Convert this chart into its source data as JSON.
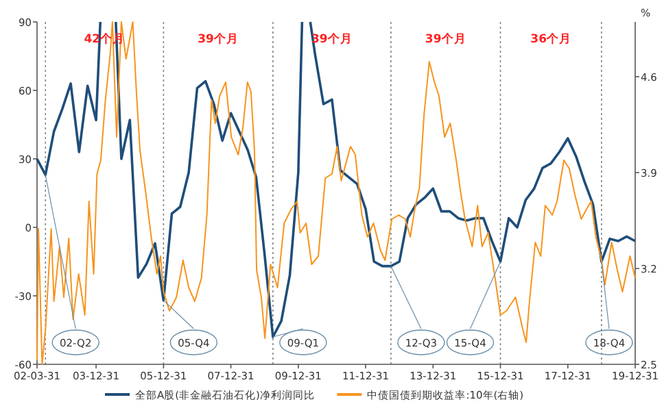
{
  "chart_data": {
    "type": "line",
    "y2label": "%",
    "legend": "bottom",
    "xlim": [
      "2002-03-31",
      "2019-12-31"
    ],
    "xticks": [
      {
        "value": "2002-03-31",
        "label": "02-03-31"
      },
      {
        "value": "2003-12-31",
        "label": "03-12-31"
      },
      {
        "value": "2005-12-31",
        "label": "05-12-31"
      },
      {
        "value": "2007-12-31",
        "label": "07-12-31"
      },
      {
        "value": "2009-12-31",
        "label": "09-12-31"
      },
      {
        "value": "2011-12-31",
        "label": "11-12-31"
      },
      {
        "value": "2013-12-31",
        "label": "13-12-31"
      },
      {
        "value": "2015-12-31",
        "label": "15-12-31"
      },
      {
        "value": "2017-12-31",
        "label": "17-12-31"
      },
      {
        "value": "2019-12-31",
        "label": "19-12-31"
      }
    ],
    "ylim": [
      -60,
      90
    ],
    "yticks": [
      -60,
      -30,
      0,
      30,
      60,
      90
    ],
    "y2lim": [
      2.5,
      5.0
    ],
    "y2ticks": [
      2.5,
      3.2,
      3.9,
      4.6
    ],
    "series": [
      {
        "name": "全部A股(非金融石油石化)净利润同比",
        "color": "#1f4e79",
        "x": [
          "2002-03-31",
          "2002-06-30",
          "2002-09-30",
          "2002-12-31",
          "2003-03-31",
          "2003-06-30",
          "2003-09-30",
          "2003-12-31",
          "2004-02-15",
          "2004-05-01",
          "2004-08-01",
          "2004-09-30",
          "2004-12-31",
          "2005-03-31",
          "2005-06-30",
          "2005-09-30",
          "2005-12-31",
          "2006-03-31",
          "2006-06-30",
          "2006-09-30",
          "2006-12-31",
          "2007-03-31",
          "2007-06-30",
          "2007-09-30",
          "2007-12-31",
          "2008-03-31",
          "2008-06-30",
          "2008-09-30",
          "2008-12-31",
          "2009-03-31",
          "2009-06-30",
          "2009-09-30",
          "2009-12-31",
          "2010-02-10",
          "2010-04-01",
          "2010-05-10",
          "2010-06-30",
          "2010-09-30",
          "2010-12-31",
          "2011-03-31",
          "2011-06-30",
          "2011-09-30",
          "2011-12-31",
          "2012-03-31",
          "2012-06-30",
          "2012-09-30",
          "2012-12-31",
          "2013-03-31",
          "2013-06-30",
          "2013-09-30",
          "2013-12-31",
          "2014-03-31",
          "2014-06-30",
          "2014-09-30",
          "2014-12-31",
          "2015-03-31",
          "2015-06-30",
          "2015-09-30",
          "2015-12-31",
          "2016-03-31",
          "2016-06-30",
          "2016-09-30",
          "2016-12-31",
          "2017-03-31",
          "2017-06-30",
          "2017-09-30",
          "2017-12-31",
          "2018-03-31",
          "2018-06-30",
          "2018-09-30",
          "2018-12-31",
          "2019-03-31",
          "2019-06-30",
          "2019-09-30",
          "2019-12-31"
        ],
        "values": [
          30,
          23,
          42,
          52,
          63,
          33,
          62,
          47,
          90,
          null,
          90,
          30,
          47,
          -22,
          -16,
          -7,
          -32,
          6,
          9,
          24,
          61,
          64,
          54,
          38,
          50,
          42,
          34,
          22,
          -12,
          -48,
          -41,
          -21,
          24,
          90,
          null,
          90,
          76,
          54,
          56,
          25,
          22,
          19,
          8,
          -15,
          -17,
          -17,
          -15,
          4,
          10,
          13,
          17,
          7,
          7,
          4,
          3,
          4,
          4,
          -6,
          -15,
          4,
          0,
          12,
          17,
          26,
          28,
          33,
          39,
          31,
          20,
          10,
          -15,
          -5,
          -6,
          -4,
          -6
        ]
      },
      {
        "name": "中债国债到期收益率:10年(右轴)",
        "color": "#f7941d",
        "axis": "y2",
        "x": [
          "2002-03-31",
          "2002-04-15",
          "2002-05-25",
          "2002-07-01",
          "2002-08-31",
          "2002-09-30",
          "2002-11-30",
          "2003-01-15",
          "2003-03-10",
          "2003-04-25",
          "2003-06-25",
          "2003-08-31",
          "2003-10-15",
          "2003-12-05",
          "2004-01-10",
          "2004-02-20",
          "2004-04-10",
          "2004-05-31",
          "2004-06-25",
          "2004-08-10",
          "2004-09-30",
          "2004-11-20",
          "2005-02-01",
          "2005-03-12",
          "2005-04-20",
          "2005-06-20",
          "2005-08-20",
          "2005-10-20",
          "2005-11-28",
          "2005-12-31",
          "2006-03-05",
          "2006-05-20",
          "2006-07-31",
          "2006-09-30",
          "2006-12-05",
          "2007-02-15",
          "2007-04-15",
          "2007-06-05",
          "2007-07-15",
          "2007-09-01",
          "2007-11-05",
          "2008-01-05",
          "2008-03-20",
          "2008-05-10",
          "2008-06-28",
          "2008-08-05",
          "2008-09-12",
          "2008-10-05",
          "2008-11-25",
          "2009-01-03",
          "2009-03-05",
          "2009-05-20",
          "2009-07-31",
          "2009-10-12",
          "2009-12-18",
          "2010-01-20",
          "2010-03-25",
          "2010-05-25",
          "2010-08-05",
          "2010-10-20",
          "2010-12-31",
          "2011-02-25",
          "2011-04-10",
          "2011-07-20",
          "2011-09-10",
          "2011-11-20",
          "2012-01-20",
          "2012-03-25",
          "2012-06-10",
          "2012-07-28",
          "2012-10-10",
          "2012-12-25",
          "2013-03-05",
          "2013-04-28",
          "2013-06-15",
          "2013-08-05",
          "2013-09-25",
          "2013-11-20",
          "2014-01-15",
          "2014-03-05",
          "2014-05-05",
          "2014-07-05",
          "2014-09-08",
          "2014-10-25",
          "2014-12-12",
          "2015-02-28",
          "2015-04-28",
          "2015-06-15",
          "2015-08-20",
          "2015-11-03",
          "2015-12-31",
          "2016-03-05",
          "2016-06-12",
          "2016-08-28",
          "2016-10-05",
          "2016-11-10",
          "2017-01-12",
          "2017-03-12",
          "2017-04-30",
          "2017-07-15",
          "2017-09-05",
          "2017-11-18",
          "2018-01-15",
          "2018-03-20",
          "2018-05-25",
          "2018-07-20",
          "2018-09-10",
          "2018-10-31",
          "2018-12-31",
          "2019-02-05",
          "2019-04-20",
          "2019-06-20",
          "2019-08-15",
          "2019-11-05",
          "2019-12-31"
        ],
        "values": [
          2.53,
          3.49,
          2.5,
          2.76,
          3.49,
          2.96,
          3.36,
          2.99,
          3.42,
          2.83,
          3.16,
          2.86,
          3.69,
          3.16,
          3.89,
          3.99,
          4.43,
          4.76,
          5.0,
          4.16,
          5.0,
          4.73,
          5.0,
          4.49,
          4.06,
          3.76,
          3.43,
          3.16,
          3.29,
          3.03,
          2.89,
          2.99,
          3.26,
          3.06,
          2.96,
          3.13,
          3.59,
          4.43,
          4.26,
          4.46,
          4.56,
          4.16,
          4.03,
          4.23,
          4.56,
          4.49,
          4.06,
          3.19,
          2.99,
          2.69,
          3.23,
          3.06,
          3.53,
          3.63,
          3.69,
          3.46,
          3.53,
          3.23,
          3.29,
          3.86,
          3.89,
          4.09,
          3.84,
          4.09,
          4.03,
          3.59,
          3.43,
          3.53,
          3.33,
          3.26,
          3.56,
          3.59,
          3.56,
          3.43,
          3.63,
          3.79,
          4.33,
          4.71,
          4.56,
          4.46,
          4.16,
          4.26,
          3.99,
          3.76,
          3.56,
          3.36,
          3.66,
          3.36,
          3.46,
          3.13,
          2.86,
          2.89,
          2.99,
          2.76,
          2.66,
          2.96,
          3.39,
          3.29,
          3.66,
          3.59,
          3.69,
          3.99,
          3.93,
          3.73,
          3.56,
          3.63,
          3.69,
          3.43,
          3.26,
          3.08,
          3.39,
          3.19,
          3.03,
          3.29,
          3.13
        ]
      }
    ],
    "ref_lines": [
      {
        "axis": "x",
        "value": "2002-06-30",
        "color": "#808080",
        "line_style": "dotted"
      },
      {
        "axis": "x",
        "value": "2005-12-31",
        "color": "#808080",
        "line_style": "dotted"
      },
      {
        "axis": "x",
        "value": "2009-03-31",
        "color": "#808080",
        "line_style": "dotted"
      },
      {
        "axis": "x",
        "value": "2012-09-30",
        "color": "#808080",
        "line_style": "dotted"
      },
      {
        "axis": "x",
        "value": "2015-12-31",
        "color": "#808080",
        "line_style": "dotted"
      },
      {
        "axis": "x",
        "value": "2018-12-31",
        "color": "#808080",
        "line_style": "dotted"
      }
    ],
    "annotations": [
      "42个月",
      "39个月",
      "39个月",
      "39个月",
      "36个月",
      {
        "text": "02-Q2",
        "x": "2002-06-30",
        "y": 23
      },
      {
        "text": "05-Q4",
        "x": "2005-12-31",
        "y": -32
      },
      {
        "text": "09-Q1",
        "x": "2009-03-31",
        "y": -48
      },
      {
        "text": "12-Q3",
        "x": "2012-09-30",
        "y": -17
      },
      {
        "text": "15-Q4",
        "x": "2015-12-31",
        "y": -15
      },
      {
        "text": "18-Q4",
        "x": "2018-12-31",
        "y": -15
      }
    ]
  }
}
